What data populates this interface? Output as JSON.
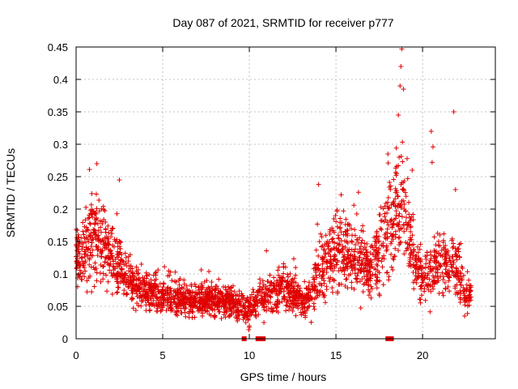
{
  "chart_data": {
    "type": "scatter",
    "title": "Day 087 of 2021, SRMTID for receiver p777",
    "xlabel": "GPS time / hours",
    "ylabel": "SRMTID / TECUs",
    "xlim": [
      0,
      24.2
    ],
    "ylim": [
      0,
      0.45
    ],
    "xticks": [
      0,
      5,
      10,
      15,
      20
    ],
    "yticks": [
      0,
      0.05,
      0.1,
      0.15,
      0.2,
      0.25,
      0.3,
      0.35,
      0.4,
      0.45
    ],
    "ytick_labels": [
      "0",
      "0.05",
      "0.1",
      "0.15",
      "0.2",
      "0.25",
      "0.3",
      "0.35",
      "0.4",
      "0.45"
    ],
    "grid": true,
    "legend": "none",
    "marker": "plus",
    "color": "#e00000",
    "series": [
      {
        "name": "SRMTID",
        "profile_hours": [
          0,
          0.5,
          1.0,
          1.5,
          2.0,
          2.5,
          3.0,
          4.0,
          5.0,
          6.0,
          7.0,
          8.0,
          9.0,
          10.0,
          11.0,
          12.0,
          13.0,
          13.5,
          14.0,
          15.0,
          16.0,
          17.0,
          18.0,
          18.5,
          19.0,
          19.5,
          20.0,
          20.5,
          21.0,
          22.0,
          22.5,
          22.8
        ],
        "profile_median": [
          0.12,
          0.14,
          0.16,
          0.15,
          0.13,
          0.11,
          0.09,
          0.075,
          0.065,
          0.06,
          0.06,
          0.06,
          0.055,
          0.045,
          0.065,
          0.075,
          0.06,
          0.06,
          0.1,
          0.13,
          0.13,
          0.11,
          0.16,
          0.2,
          0.2,
          0.12,
          0.09,
          0.1,
          0.12,
          0.11,
          0.06,
          0.06
        ],
        "profile_spread": [
          0.04,
          0.05,
          0.06,
          0.05,
          0.05,
          0.04,
          0.03,
          0.025,
          0.025,
          0.022,
          0.022,
          0.022,
          0.02,
          0.02,
          0.025,
          0.03,
          0.025,
          0.025,
          0.04,
          0.05,
          0.05,
          0.04,
          0.07,
          0.08,
          0.07,
          0.04,
          0.03,
          0.04,
          0.04,
          0.04,
          0.025,
          0.025
        ],
        "peaks": [
          {
            "x": 1.2,
            "y": 0.27
          },
          {
            "x": 2.5,
            "y": 0.245
          },
          {
            "x": 14.0,
            "y": 0.238
          },
          {
            "x": 15.3,
            "y": 0.222
          },
          {
            "x": 16.3,
            "y": 0.226
          },
          {
            "x": 18.0,
            "y": 0.285
          },
          {
            "x": 18.6,
            "y": 0.345
          },
          {
            "x": 18.7,
            "y": 0.39
          },
          {
            "x": 18.75,
            "y": 0.42
          },
          {
            "x": 18.8,
            "y": 0.447
          },
          {
            "x": 18.9,
            "y": 0.385
          },
          {
            "x": 19.4,
            "y": 0.26
          },
          {
            "x": 20.5,
            "y": 0.32
          },
          {
            "x": 20.6,
            "y": 0.296
          },
          {
            "x": 20.55,
            "y": 0.272
          },
          {
            "x": 21.8,
            "y": 0.35
          },
          {
            "x": 21.9,
            "y": 0.23
          }
        ],
        "zero_points": [
          9.7,
          10.5,
          10.6,
          10.8,
          18.0,
          18.1,
          18.2
        ]
      }
    ]
  }
}
